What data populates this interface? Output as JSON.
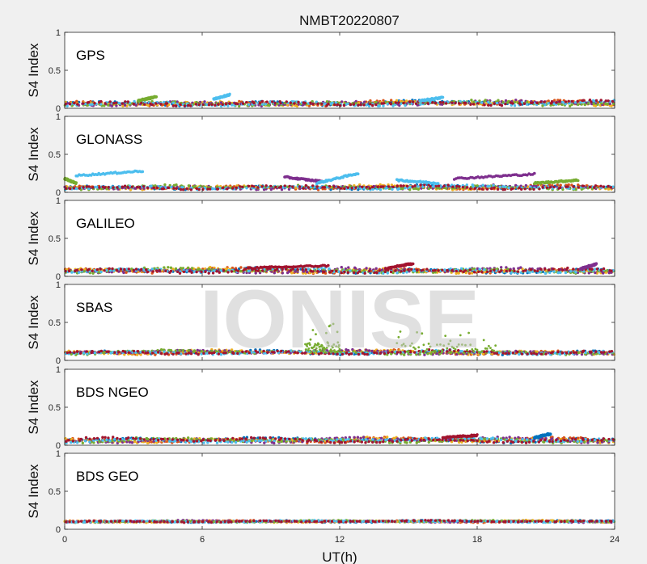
{
  "figure": {
    "title": "NMBT20220807",
    "xlabel": "UT(h)",
    "watermark": "IONISE",
    "background": "#f0f0f0"
  },
  "chart_data": {
    "type": "scatter",
    "title": "NMBT20220807",
    "xlabel": "UT(h)",
    "xlim": [
      0,
      24
    ],
    "xticks": [
      "0",
      "6",
      "12",
      "18",
      "24"
    ],
    "series_colors": [
      "#0072BD",
      "#D95319",
      "#EDB120",
      "#7E2F8E",
      "#77AC30",
      "#4DBEEE",
      "#A2142F"
    ],
    "panels": [
      {
        "system": "GPS",
        "ylabel": "S4 Index",
        "ylim": [
          0,
          1
        ],
        "yticks": [
          "0",
          "0.5",
          "1"
        ],
        "baseline": 0.06,
        "noise": 0.03,
        "features": [
          {
            "color": 5,
            "x": [
              6.5,
              7.2
            ],
            "y": [
              0.12,
              0.18
            ]
          },
          {
            "color": 4,
            "x": [
              3.2,
              4.0
            ],
            "y": [
              0.1,
              0.15
            ]
          },
          {
            "color": 5,
            "x": [
              15.5,
              16.5
            ],
            "y": [
              0.1,
              0.14
            ]
          }
        ]
      },
      {
        "system": "GLONASS",
        "ylabel": "S4 Index",
        "ylim": [
          0,
          1
        ],
        "yticks": [
          "0",
          "0.5",
          "1"
        ],
        "baseline": 0.06,
        "noise": 0.025,
        "features": [
          {
            "color": 5,
            "x": [
              0.5,
              3.4
            ],
            "y": [
              0.22,
              0.28
            ]
          },
          {
            "color": 4,
            "x": [
              0.0,
              0.5
            ],
            "y": [
              0.18,
              0.12
            ]
          },
          {
            "color": 3,
            "x": [
              9.6,
              11.3
            ],
            "y": [
              0.2,
              0.14
            ]
          },
          {
            "color": 5,
            "x": [
              11.0,
              12.8
            ],
            "y": [
              0.12,
              0.25
            ]
          },
          {
            "color": 5,
            "x": [
              14.5,
              16.3
            ],
            "y": [
              0.16,
              0.12
            ]
          },
          {
            "color": 3,
            "x": [
              17.0,
              20.5
            ],
            "y": [
              0.18,
              0.24
            ]
          },
          {
            "color": 4,
            "x": [
              20.5,
              22.4
            ],
            "y": [
              0.12,
              0.16
            ]
          }
        ]
      },
      {
        "system": "GALILEO",
        "ylabel": "S4 Index",
        "ylim": [
          0,
          1
        ],
        "yticks": [
          "0",
          "0.5",
          "1"
        ],
        "baseline": 0.07,
        "noise": 0.03,
        "features": [
          {
            "color": 6,
            "x": [
              8.0,
              11.5
            ],
            "y": [
              0.11,
              0.14
            ]
          },
          {
            "color": 6,
            "x": [
              14.0,
              15.2
            ],
            "y": [
              0.1,
              0.17
            ]
          },
          {
            "color": 3,
            "x": [
              22.5,
              23.2
            ],
            "y": [
              0.1,
              0.16
            ]
          }
        ]
      },
      {
        "system": "SBAS",
        "ylabel": "S4 Index",
        "ylim": [
          0,
          1
        ],
        "yticks": [
          "0",
          "0.5",
          "1"
        ],
        "baseline": 0.1,
        "noise": 0.025,
        "features": [
          {
            "color": 4,
            "x": [
              10.5,
              12.0
            ],
            "y": [
              0.15,
              0.5
            ],
            "scatter": true
          },
          {
            "color": 4,
            "x": [
              14.5,
              18.8
            ],
            "y": [
              0.15,
              0.45
            ],
            "scatter": true
          }
        ]
      },
      {
        "system": "BDS NGEO",
        "ylabel": "S4 Index",
        "ylim": [
          0,
          1
        ],
        "yticks": [
          "0",
          "0.5",
          "1"
        ],
        "baseline": 0.06,
        "noise": 0.03,
        "features": [
          {
            "color": 6,
            "x": [
              16.5,
              18.0
            ],
            "y": [
              0.1,
              0.13
            ]
          },
          {
            "color": 0,
            "x": [
              20.5,
              21.2
            ],
            "y": [
              0.1,
              0.15
            ]
          }
        ]
      },
      {
        "system": "BDS GEO",
        "ylabel": "S4 Index",
        "ylim": [
          0,
          1
        ],
        "yticks": [
          "0",
          "0.5",
          "1"
        ],
        "baseline": 0.1,
        "noise": 0.012,
        "features": []
      }
    ]
  }
}
